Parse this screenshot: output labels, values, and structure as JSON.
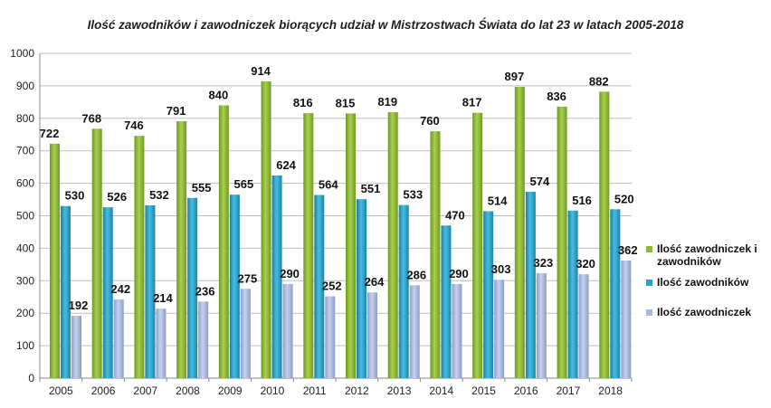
{
  "chart_data": {
    "type": "bar",
    "title": "Ilość zawodników i zawodniczek biorących udział w Mistrzostwach Świata do lat 23 w latach 2005-2018",
    "categories": [
      "2005",
      "2006",
      "2007",
      "2008",
      "2009",
      "2010",
      "2011",
      "2012",
      "2013",
      "2014",
      "2015",
      "2016",
      "2017",
      "2018"
    ],
    "series": [
      {
        "name": "Ilość zawodniczek i zawodników",
        "color": "#8fb838",
        "values": [
          722,
          768,
          746,
          791,
          840,
          914,
          816,
          815,
          819,
          760,
          817,
          897,
          836,
          882
        ]
      },
      {
        "name": "Ilość zawodników",
        "color": "#2aa2c8",
        "values": [
          530,
          526,
          532,
          555,
          565,
          624,
          564,
          551,
          533,
          470,
          514,
          574,
          516,
          520
        ]
      },
      {
        "name": "Ilość zawodniczek",
        "color": "#a9b8dc",
        "values": [
          192,
          242,
          214,
          236,
          275,
          290,
          252,
          264,
          286,
          290,
          303,
          323,
          320,
          362
        ]
      }
    ],
    "ylim": [
      0,
      1000
    ],
    "yticks": [
      0,
      100,
      200,
      300,
      400,
      500,
      600,
      700,
      800,
      900,
      1000
    ],
    "grid": true,
    "legend_position": "right"
  }
}
